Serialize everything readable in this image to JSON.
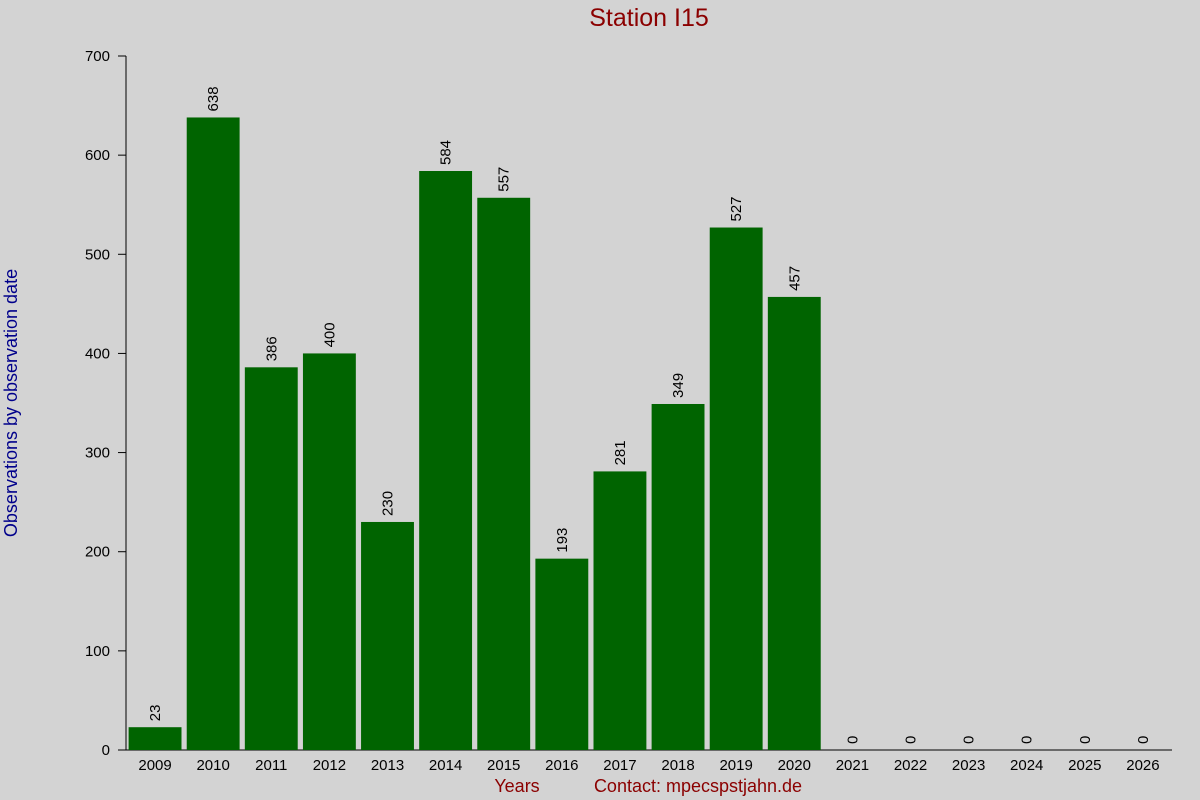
{
  "chart_data": {
    "type": "bar",
    "title": "Station I15",
    "x_label": "Years",
    "y_label": "Observations by observation date",
    "annotation": "Contact: mpecspstjahn.de",
    "categories": [
      "2009",
      "2010",
      "2011",
      "2012",
      "2013",
      "2014",
      "2015",
      "2016",
      "2017",
      "2018",
      "2019",
      "2020",
      "2021",
      "2022",
      "2023",
      "2024",
      "2025",
      "2026"
    ],
    "values": [
      23,
      638,
      386,
      400,
      230,
      584,
      557,
      193,
      281,
      349,
      527,
      457,
      0,
      0,
      0,
      0,
      0,
      0
    ],
    "color": "#006400",
    "ylim": [
      0,
      700
    ],
    "yticks": [
      0,
      100,
      200,
      300,
      400,
      500,
      600,
      700
    ],
    "grid": false
  }
}
